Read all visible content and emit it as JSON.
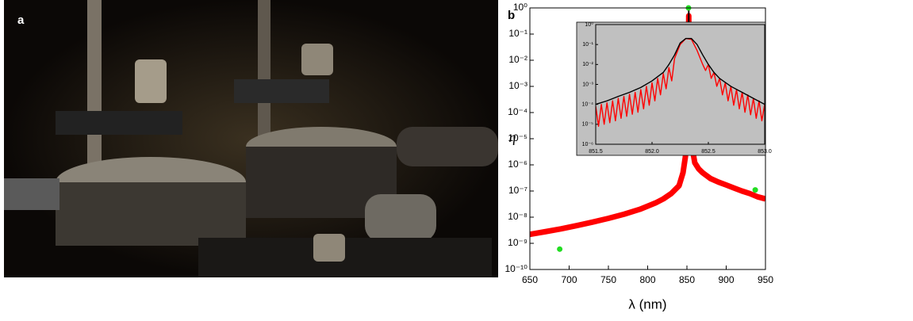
{
  "photo": {
    "label": "a"
  },
  "chart_data": [
    {
      "type": "line",
      "panel_label": "b",
      "xlabel": "λ (nm)",
      "ylabel": "η",
      "ylog": true,
      "xlim": [
        650,
        950
      ],
      "ylim": [
        1e-10,
        1
      ],
      "xticks": [
        650,
        700,
        750,
        800,
        850,
        900,
        950
      ],
      "yticks": [
        {
          "value": 1e-10,
          "label": "10⁻¹⁰"
        },
        {
          "value": 1e-09,
          "label": "10⁻⁹"
        },
        {
          "value": 1e-08,
          "label": "10⁻⁸"
        },
        {
          "value": 1e-07,
          "label": "10⁻⁷"
        },
        {
          "value": 1e-06,
          "label": "10⁻⁶"
        },
        {
          "value": 1e-05,
          "label": "10⁻⁵"
        },
        {
          "value": 0.0001,
          "label": "10⁻⁴"
        },
        {
          "value": 0.001,
          "label": "10⁻³"
        },
        {
          "value": 0.01,
          "label": "10⁻²"
        },
        {
          "value": 0.1,
          "label": "10⁻¹"
        },
        {
          "value": 1,
          "label": "10⁰"
        }
      ],
      "series": [
        {
          "color": "#ff0000",
          "mode": "band",
          "x": [
            650,
            670,
            690,
            710,
            730,
            750,
            770,
            790,
            810,
            820,
            830,
            840,
            845,
            848,
            850,
            851,
            851.5,
            852,
            852.2,
            852.3,
            852.4,
            852.6,
            853,
            853.5,
            854,
            856,
            860,
            865,
            870,
            880,
            890,
            900,
            910,
            920,
            930,
            940,
            950
          ],
          "values": [
            2.2e-09,
            2.8e-09,
            3.6e-09,
            4.8e-09,
            6.5e-09,
            9e-09,
            1.3e-08,
            2e-08,
            3.5e-08,
            5e-08,
            8e-08,
            1.6e-07,
            5e-07,
            2e-06,
            1e-05,
            6e-05,
            0.0003,
            0.005,
            0.1,
            0.5,
            0.1,
            0.005,
            0.0003,
            6e-05,
            2e-05,
            6e-06,
            1.2e-06,
            7e-07,
            5e-07,
            3e-07,
            2.2e-07,
            1.7e-07,
            1.3e-07,
            1e-07,
            8e-08,
            6e-08,
            5e-08
          ]
        },
        {
          "color": "#000000",
          "mode": "line",
          "x": [
            850,
            851,
            851.5,
            852,
            852.2,
            852.3,
            852.35,
            852.45,
            852.6,
            853,
            854
          ],
          "values": [
            1e-05,
            8e-05,
            0.0004,
            0.01,
            0.2,
            1,
            1,
            0.2,
            0.01,
            0.0004,
            2e-05
          ]
        },
        {
          "color": "#22dd22",
          "mode": "markers",
          "x": [
            852,
            688,
            937
          ],
          "values": [
            1,
            6e-10,
            1.1e-07
          ]
        }
      ]
    },
    {
      "type": "line",
      "ylog": true,
      "background": "#c0c0c0",
      "xlim": [
        851.5,
        853.0
      ],
      "ylim": [
        1e-06,
        1
      ],
      "xticks": [
        {
          "value": 851.5,
          "label": "851.5"
        },
        {
          "value": 852,
          "label": "852.0"
        },
        {
          "value": 852.5,
          "label": "852.5"
        },
        {
          "value": 853,
          "label": "853.0"
        }
      ],
      "yticks": [
        {
          "value": 1e-06,
          "label": "10⁻⁶"
        },
        {
          "value": 1e-05,
          "label": "10⁻⁵"
        },
        {
          "value": 0.0001,
          "label": "10⁻⁴"
        },
        {
          "value": 0.001,
          "label": "10⁻³"
        },
        {
          "value": 0.01,
          "label": "10⁻²"
        },
        {
          "value": 0.1,
          "label": "10⁻¹"
        },
        {
          "value": 1,
          "label": "10⁰"
        }
      ],
      "series": [
        {
          "color": "#ff0000",
          "mode": "line",
          "x": [
            851.5,
            851.525,
            851.55,
            851.575,
            851.6,
            851.625,
            851.65,
            851.675,
            851.7,
            851.725,
            851.75,
            851.775,
            851.8,
            851.825,
            851.85,
            851.875,
            851.9,
            851.925,
            851.95,
            851.975,
            852.0,
            852.025,
            852.05,
            852.075,
            852.1,
            852.125,
            852.15,
            852.175,
            852.2,
            852.25,
            852.3,
            852.35,
            852.4,
            852.45,
            852.475,
            852.5,
            852.525,
            852.55,
            852.575,
            852.6,
            852.625,
            852.65,
            852.675,
            852.7,
            852.725,
            852.75,
            852.775,
            852.8,
            852.825,
            852.85,
            852.875,
            852.9,
            852.925,
            852.95,
            852.975,
            853.0
          ],
          "values": [
            8e-05,
            8e-06,
            0.0001,
            1e-05,
            0.00012,
            1.2e-05,
            0.00015,
            1.5e-05,
            0.0002,
            2e-05,
            0.00025,
            2.5e-05,
            0.00032,
            3.2e-05,
            0.0004,
            4e-05,
            0.00055,
            6e-05,
            0.0008,
            9e-05,
            0.0012,
            0.00015,
            0.002,
            0.0003,
            0.0035,
            0.0006,
            0.007,
            0.0015,
            0.02,
            0.1,
            0.2,
            0.18,
            0.05,
            0.01,
            0.005,
            0.01,
            0.002,
            0.004,
            0.0008,
            0.002,
            0.0003,
            0.0012,
            0.00015,
            0.0008,
            9e-05,
            0.00055,
            6e-05,
            0.0004,
            4e-05,
            0.0003,
            3e-05,
            0.0002,
            2e-05,
            0.00015,
            1.5e-05,
            0.0001
          ]
        },
        {
          "color": "#000000",
          "mode": "line",
          "x": [
            851.5,
            851.6,
            851.7,
            851.8,
            851.9,
            852.0,
            852.1,
            852.15,
            852.2,
            852.25,
            852.3,
            852.35,
            852.4,
            852.45,
            852.5,
            852.55,
            852.6,
            852.7,
            852.8,
            852.9,
            853.0
          ],
          "values": [
            0.0001,
            0.00015,
            0.00025,
            0.0004,
            0.0007,
            0.0015,
            0.004,
            0.01,
            0.03,
            0.12,
            0.2,
            0.2,
            0.1,
            0.03,
            0.01,
            0.004,
            0.002,
            0.0008,
            0.0004,
            0.0002,
            0.0001
          ]
        }
      ]
    }
  ]
}
